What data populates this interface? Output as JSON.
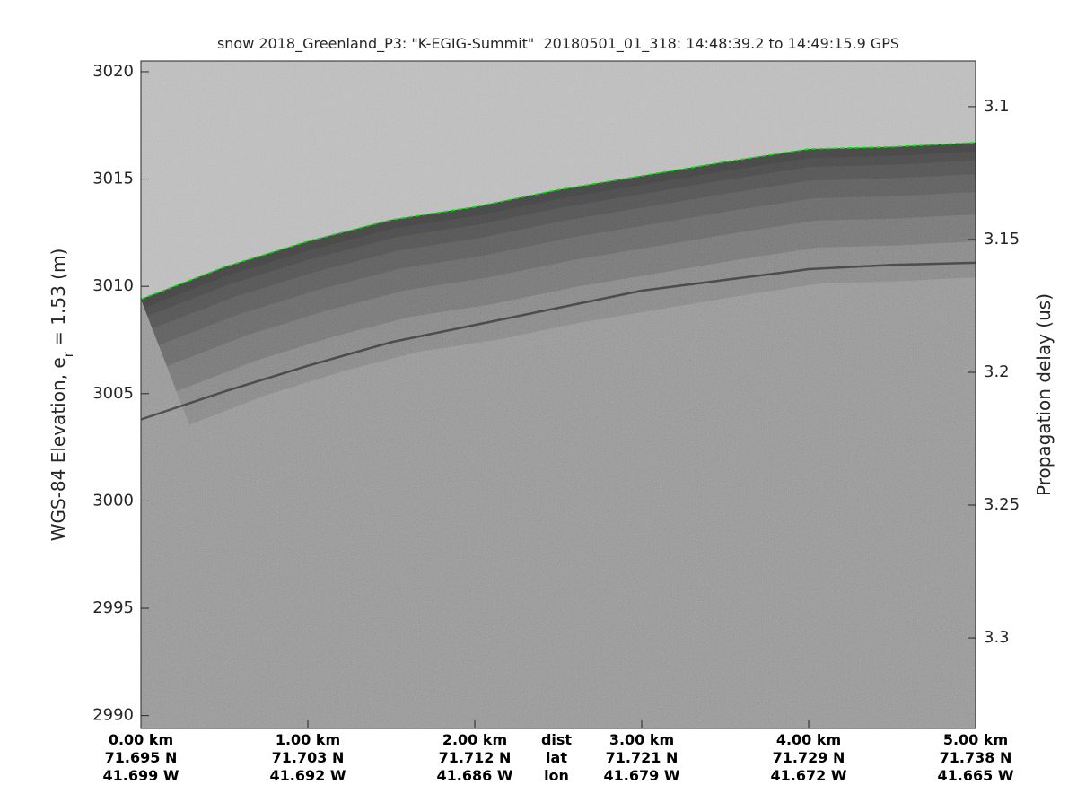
{
  "chart_data": {
    "type": "echogram",
    "title": "snow 2018_Greenland_P3: \"K-EGIG-Summit\"  20180501_01_318: 14:48:39.2 to 14:49:15.9 GPS",
    "ylabel": {
      "main": "WGS-84 Elevation, e",
      "sub": "r",
      "rest": " = 1.53 (m)"
    },
    "y2label": "Propagation delay (us)",
    "xlim": [
      0,
      5
    ],
    "ylim": [
      2989.4,
      3020.5
    ],
    "y2lim": [
      3.0828,
      3.3341
    ],
    "yticks": [
      2990,
      2995,
      3000,
      3005,
      3010,
      3015,
      3020
    ],
    "y2ticks": [
      3.1,
      3.15,
      3.2,
      3.25,
      3.3
    ],
    "xticks": [
      {
        "value": 0,
        "label": "0.00 km"
      },
      {
        "value": 1,
        "label": "1.00 km"
      },
      {
        "value": 2,
        "label": "2.00 km"
      },
      {
        "value": 3,
        "label": "3.00 km"
      },
      {
        "value": 4,
        "label": "4.00 km"
      },
      {
        "value": 5,
        "label": "5.00 km"
      }
    ],
    "lat_labels": [
      "71.695 N",
      "71.703 N",
      "71.712 N",
      "71.721 N",
      "71.729 N",
      "71.738 N"
    ],
    "lon_labels": [
      "41.699 W",
      "41.692 W",
      "41.686 W",
      "41.679 W",
      "41.672 W",
      "41.665 W"
    ],
    "row_labels": [
      "dist",
      "lat",
      "lon"
    ],
    "surface": {
      "color": "#00dd00",
      "x": [
        0,
        0.5,
        1,
        1.5,
        2,
        2.5,
        3,
        3.5,
        4,
        4.5,
        5
      ],
      "values": [
        3009.4,
        3010.9,
        3012.1,
        3013.1,
        3013.7,
        3014.5,
        3015.15,
        3015.8,
        3016.4,
        3016.5,
        3016.7
      ]
    },
    "layer": {
      "color": "#2a2a2a",
      "x": [
        0,
        0.5,
        1,
        1.5,
        2,
        2.5,
        3,
        3.5,
        4,
        4.5,
        5
      ],
      "values": [
        3003.8,
        3005.1,
        3006.3,
        3007.4,
        3008.2,
        3009.0,
        3009.8,
        3010.3,
        3010.8,
        3011.0,
        3011.1
      ]
    }
  }
}
